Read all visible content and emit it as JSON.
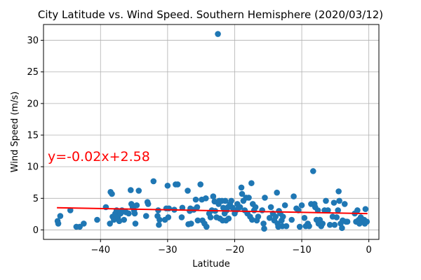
{
  "chart_data": {
    "type": "scatter",
    "title": "City Latitude vs. Wind Speed. Southern Hemisphere (2020/03/12)",
    "xlabel": "Latitude",
    "ylabel": "Wind Speed (m/s)",
    "xlim": [
      -48.5,
      1.5
    ],
    "ylim": [
      -1.5,
      32.5
    ],
    "xticks": [
      -40,
      -30,
      -20,
      -10,
      0
    ],
    "yticks": [
      0,
      5,
      10,
      15,
      20,
      25,
      30
    ],
    "xtick_labels": [
      "−40",
      "−30",
      "−20",
      "−10",
      "0"
    ],
    "ytick_labels": [
      "0",
      "5",
      "10",
      "15",
      "20",
      "25",
      "30"
    ],
    "grid": true,
    "point_color": "#1f77b4",
    "regression": {
      "slope": -0.02,
      "intercept": 2.58,
      "x_range": [
        -46.5,
        -0.2
      ],
      "color": "#ff0000",
      "equation": "y=-0.02x+2.58"
    },
    "points": [
      [
        -46.4,
        1.4
      ],
      [
        -46.3,
        1.0
      ],
      [
        -46.0,
        2.2
      ],
      [
        -44.5,
        3.1
      ],
      [
        -43.6,
        0.5
      ],
      [
        -43.1,
        0.5
      ],
      [
        -42.5,
        1.0
      ],
      [
        -40.5,
        1.6
      ],
      [
        -39.2,
        3.6
      ],
      [
        -38.6,
        1.0
      ],
      [
        -38.5,
        6.0
      ],
      [
        -38.3,
        5.7
      ],
      [
        -38.2,
        2.1
      ],
      [
        -38.0,
        1.6
      ],
      [
        -37.8,
        2.6
      ],
      [
        -37.6,
        3.1
      ],
      [
        -37.4,
        2.0
      ],
      [
        -37.2,
        1.4
      ],
      [
        -37.0,
        2.6
      ],
      [
        -36.8,
        3.1
      ],
      [
        -36.5,
        1.6
      ],
      [
        -36.2,
        2.8
      ],
      [
        -35.8,
        2.6
      ],
      [
        -35.5,
        6.3
      ],
      [
        -35.4,
        4.1
      ],
      [
        -35.2,
        3.6
      ],
      [
        -35.0,
        3.1
      ],
      [
        -34.9,
        2.6
      ],
      [
        -34.8,
        1.0
      ],
      [
        -34.6,
        3.9
      ],
      [
        -34.3,
        6.2
      ],
      [
        -33.2,
        2.2
      ],
      [
        -33.0,
        4.4
      ],
      [
        -32.9,
        4.1
      ],
      [
        -32.1,
        7.7
      ],
      [
        -31.5,
        2.2
      ],
      [
        -31.4,
        3.1
      ],
      [
        -31.3,
        0.8
      ],
      [
        -31.2,
        1.6
      ],
      [
        -30.4,
        1.6
      ],
      [
        -30.2,
        3.4
      ],
      [
        -30.0,
        7.0
      ],
      [
        -29.9,
        2.0
      ],
      [
        -29.8,
        3.4
      ],
      [
        -29.0,
        3.2
      ],
      [
        -28.8,
        7.2
      ],
      [
        -28.5,
        7.2
      ],
      [
        -27.9,
        2.0
      ],
      [
        -27.8,
        3.5
      ],
      [
        -27.0,
        6.2
      ],
      [
        -26.9,
        0.9
      ],
      [
        -26.7,
        3.0
      ],
      [
        -26.6,
        3.4
      ],
      [
        -26.5,
        1.0
      ],
      [
        -26.1,
        3.2
      ],
      [
        -25.8,
        4.8
      ],
      [
        -25.6,
        3.6
      ],
      [
        -25.5,
        1.5
      ],
      [
        -25.1,
        7.2
      ],
      [
        -24.9,
        4.8
      ],
      [
        -24.8,
        1.5
      ],
      [
        -24.5,
        1.0
      ],
      [
        -24.3,
        5.0
      ],
      [
        -24.2,
        0.5
      ],
      [
        -23.8,
        2.6
      ],
      [
        -23.6,
        2.0
      ],
      [
        -23.4,
        3.1
      ],
      [
        -23.2,
        5.3
      ],
      [
        -23.0,
        4.5
      ],
      [
        -22.9,
        3.0
      ],
      [
        -22.7,
        2.0
      ],
      [
        -22.5,
        31.0
      ],
      [
        -22.4,
        4.1
      ],
      [
        -22.3,
        4.6
      ],
      [
        -22.2,
        1.8
      ],
      [
        -21.9,
        4.6
      ],
      [
        -21.8,
        1.5
      ],
      [
        -21.7,
        3.5
      ],
      [
        -21.5,
        2.6
      ],
      [
        -21.4,
        4.6
      ],
      [
        -21.3,
        1.5
      ],
      [
        -21.2,
        3.1
      ],
      [
        -21.0,
        3.6
      ],
      [
        -20.9,
        1.8
      ],
      [
        -20.7,
        4.1
      ],
      [
        -20.5,
        4.6
      ],
      [
        -20.3,
        3.5
      ],
      [
        -20.0,
        2.6
      ],
      [
        -19.8,
        3.1
      ],
      [
        -19.6,
        4.1
      ],
      [
        -19.4,
        3.5
      ],
      [
        -19.2,
        3.6
      ],
      [
        -19.0,
        6.7
      ],
      [
        -18.9,
        5.7
      ],
      [
        -18.7,
        4.6
      ],
      [
        -18.5,
        3.1
      ],
      [
        -18.3,
        5.1
      ],
      [
        -18.1,
        2.6
      ],
      [
        -17.9,
        5.1
      ],
      [
        -17.7,
        2.1
      ],
      [
        -17.5,
        7.4
      ],
      [
        -17.4,
        1.6
      ],
      [
        -17.3,
        4.1
      ],
      [
        -17.1,
        3.1
      ],
      [
        -16.9,
        3.6
      ],
      [
        -16.7,
        1.5
      ],
      [
        -16.5,
        2.1
      ],
      [
        -15.9,
        3.1
      ],
      [
        -15.7,
        1.0
      ],
      [
        -15.6,
        0.2
      ],
      [
        -15.5,
        5.1
      ],
      [
        -14.8,
        1.9
      ],
      [
        -14.6,
        3.6
      ],
      [
        -14.3,
        2.6
      ],
      [
        -14.1,
        1.5
      ],
      [
        -13.9,
        2.1
      ],
      [
        -13.7,
        5.9
      ],
      [
        -13.6,
        1.0
      ],
      [
        -13.5,
        0.5
      ],
      [
        -13.4,
        3.0
      ],
      [
        -13.2,
        2.6
      ],
      [
        -13.0,
        1.5
      ],
      [
        -12.9,
        0.6
      ],
      [
        -12.8,
        2.1
      ],
      [
        -12.5,
        3.9
      ],
      [
        -12.3,
        0.6
      ],
      [
        -11.5,
        1.6
      ],
      [
        -11.2,
        5.3
      ],
      [
        -10.8,
        3.4
      ],
      [
        -10.5,
        3.1
      ],
      [
        -10.3,
        0.5
      ],
      [
        -10.0,
        3.9
      ],
      [
        -9.6,
        1.9
      ],
      [
        -9.4,
        0.6
      ],
      [
        -9.1,
        1.0
      ],
      [
        -8.9,
        0.6
      ],
      [
        -8.6,
        4.1
      ],
      [
        -8.3,
        9.3
      ],
      [
        -8.1,
        4.1
      ],
      [
        -8.0,
        3.6
      ],
      [
        -7.8,
        1.6
      ],
      [
        -7.6,
        3.1
      ],
      [
        -7.5,
        1.0
      ],
      [
        -7.3,
        1.6
      ],
      [
        -7.1,
        0.6
      ],
      [
        -6.9,
        1.0
      ],
      [
        -6.6,
        3.1
      ],
      [
        -6.4,
        4.6
      ],
      [
        -6.1,
        3.1
      ],
      [
        -5.8,
        0.8
      ],
      [
        -5.4,
        2.1
      ],
      [
        -5.2,
        4.3
      ],
      [
        -5.1,
        0.8
      ],
      [
        -4.8,
        2.0
      ],
      [
        -4.6,
        3.1
      ],
      [
        -4.5,
        6.1
      ],
      [
        -4.4,
        4.6
      ],
      [
        -4.2,
        1.0
      ],
      [
        -4.0,
        0.3
      ],
      [
        -3.9,
        1.5
      ],
      [
        -3.6,
        4.1
      ],
      [
        -3.4,
        1.3
      ],
      [
        -3.2,
        1.3
      ],
      [
        -2.1,
        2.6
      ],
      [
        -1.9,
        1.3
      ],
      [
        -1.7,
        3.1
      ],
      [
        -1.5,
        1.6
      ],
      [
        -1.4,
        1.0
      ],
      [
        -1.2,
        2.0
      ],
      [
        -1.0,
        1.3
      ],
      [
        -0.7,
        1.6
      ],
      [
        -0.6,
        1.0
      ],
      [
        -0.5,
        3.3
      ],
      [
        -0.3,
        1.3
      ]
    ]
  }
}
